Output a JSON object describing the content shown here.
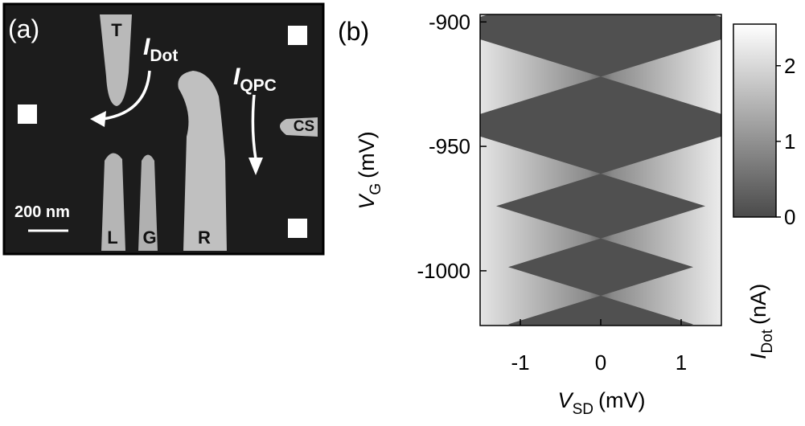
{
  "panel_a": {
    "label": "(a)",
    "gates": [
      "T",
      "L",
      "G",
      "R"
    ],
    "cs": "CS",
    "current_dot": {
      "symbol": "I",
      "subscript": "Dot"
    },
    "current_qpc": {
      "symbol": "I",
      "subscript": "QPC"
    },
    "scale_bar": "200 nm"
  },
  "chart_data": {
    "type": "heatmap",
    "panel_label": "(b)",
    "x_label": {
      "symbol": "V",
      "subscript": "SD",
      "unit": "(mV)"
    },
    "y_label": {
      "symbol": "V",
      "subscript": "G",
      "unit": "(mV)"
    },
    "xlim": [
      -1.5,
      1.5
    ],
    "ylim": [
      -1022,
      -897
    ],
    "xticks": [
      -1,
      0,
      1
    ],
    "yticks": [
      -900,
      -950,
      -1000
    ],
    "degeneracy_points": [
      -922,
      -961,
      -987,
      -1010
    ],
    "colorbar": {
      "label": {
        "symbol": "I",
        "subscript": "Dot",
        "unit": "(nA)"
      },
      "lim": [
        0,
        2.55
      ],
      "ticks": [
        0,
        1,
        2
      ]
    }
  }
}
